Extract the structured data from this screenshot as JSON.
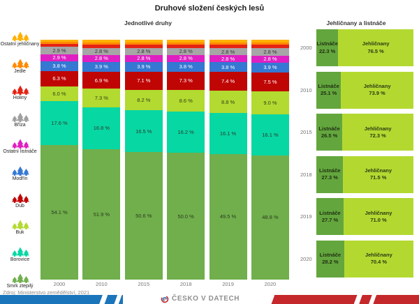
{
  "page": {
    "title": "Druhové složení českých lesů",
    "source": "Zdroj: Ministerstvo zemědělství, 2021",
    "brand": "ČESKO V DATECH"
  },
  "legend": {
    "items": [
      {
        "label": "Ostatní jehličnany",
        "color": "#FFB000",
        "icon": "conifer-trees-icon"
      },
      {
        "label": "Jedle",
        "color": "#FF8A00",
        "icon": "conifer-trees-icon"
      },
      {
        "label": "Holiny",
        "color": "#E52314",
        "icon": "conifer-trees-icon"
      },
      {
        "label": "Bříza",
        "color": "#A0A0A0",
        "icon": "conifer-trees-icon"
      },
      {
        "label": "Ostatní listnáče",
        "color": "#E01FC2",
        "icon": "conifer-trees-icon"
      },
      {
        "label": "Modřín",
        "color": "#3578D3",
        "icon": "conifer-trees-icon"
      },
      {
        "label": "Dub",
        "color": "#C00505",
        "icon": "conifer-trees-icon"
      },
      {
        "label": "Buk",
        "color": "#B2DA30",
        "icon": "conifer-trees-icon"
      },
      {
        "label": "Borovice",
        "color": "#07D7A3",
        "icon": "conifer-trees-icon"
      },
      {
        "label": "Smrk ztepilý",
        "color": "#70AF4C",
        "icon": "conifer-trees-icon"
      }
    ]
  },
  "chart_data": [
    {
      "type": "bar",
      "variant": "stacked-vertical",
      "title": "Jednotlivé druhy",
      "unit": "%",
      "categories": [
        "2000",
        "2010",
        "2015",
        "2018",
        "2019",
        "2020"
      ],
      "series_top_to_bottom": [
        {
          "name": "Ostatní jehličnany",
          "color": "#FFB000",
          "text": "#ffffff",
          "labeled": false,
          "estimated": true,
          "values": [
            0.9,
            1.0,
            1.0,
            1.0,
            1.0,
            1.0
          ]
        },
        {
          "name": "Jedle",
          "color": "#FF8A00",
          "text": "#ffffff",
          "labeled": false,
          "estimated": true,
          "values": [
            0.9,
            1.0,
            1.0,
            1.0,
            1.0,
            1.0
          ]
        },
        {
          "name": "Holiny",
          "color": "#E52314",
          "text": "#ffffff",
          "labeled": false,
          "estimated": true,
          "values": [
            1.1,
            1.2,
            1.2,
            1.2,
            1.3,
            1.4
          ]
        },
        {
          "name": "Bříza",
          "color": "#A6A6A6",
          "text": "#333333",
          "labeled": true,
          "values": [
            2.9,
            2.8,
            2.8,
            2.8,
            2.8,
            2.8
          ]
        },
        {
          "name": "Ostatní listnáče",
          "color": "#E01FC2",
          "text": "#ffffff",
          "labeled": true,
          "values": [
            2.9,
            2.8,
            2.8,
            2.8,
            2.8,
            2.8
          ]
        },
        {
          "name": "Modřín",
          "color": "#3578D3",
          "text": "#ffffff",
          "labeled": true,
          "values": [
            3.8,
            3.9,
            3.9,
            3.8,
            3.8,
            3.9
          ]
        },
        {
          "name": "Dub",
          "color": "#C00505",
          "text": "#ffffff",
          "labeled": true,
          "values": [
            6.3,
            6.9,
            7.1,
            7.3,
            7.4,
            7.5
          ]
        },
        {
          "name": "Buk",
          "color": "#B2DA30",
          "text": "#33401a",
          "labeled": true,
          "values": [
            6.0,
            7.3,
            8.2,
            8.6,
            8.8,
            9.0
          ]
        },
        {
          "name": "Borovice",
          "color": "#07D7A3",
          "text": "#2e3a2e",
          "labeled": true,
          "values": [
            17.6,
            16.8,
            16.5,
            16.2,
            16.1,
            16.1
          ]
        },
        {
          "name": "Smrk ztepilý",
          "color": "#70AF4C",
          "text": "#2c3a1e",
          "labeled": true,
          "values": [
            54.1,
            51.9,
            50.6,
            50.0,
            49.5,
            48.8
          ]
        }
      ]
    },
    {
      "type": "bar",
      "variant": "stacked-horizontal",
      "title": "Jehličnany a listnáče",
      "unit": "%",
      "categories": [
        "2000",
        "2010",
        "2015",
        "2018",
        "2019",
        "2020"
      ],
      "series": [
        {
          "name": "Listnáče",
          "color": "#63A63E",
          "text": "#1f2e10",
          "values": [
            22.3,
            25.1,
            26.5,
            27.3,
            27.7,
            28.2
          ]
        },
        {
          "name": "Jehličnany",
          "color": "#B3D931",
          "text": "#2b3a12",
          "values": [
            76.5,
            73.9,
            72.3,
            71.5,
            71.0,
            70.4
          ]
        }
      ]
    }
  ],
  "footer_colors": {
    "blue": "#1B75BB",
    "red": "#C5282B"
  }
}
